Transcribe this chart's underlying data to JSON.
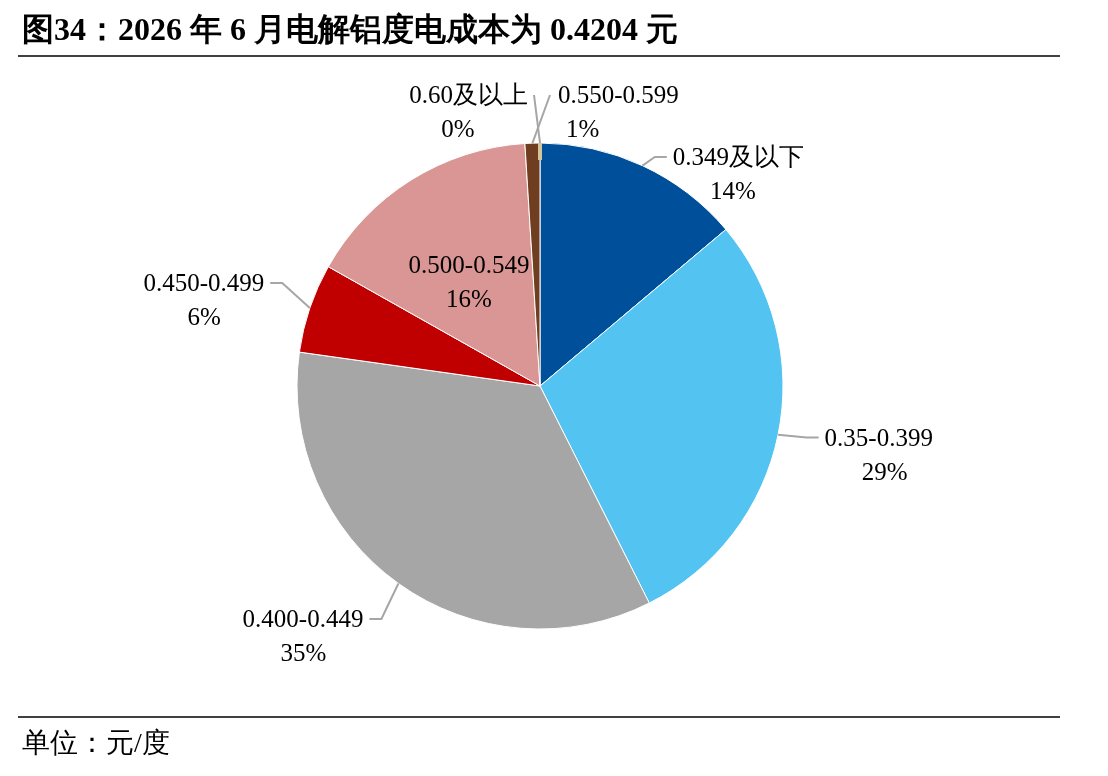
{
  "chart_data": {
    "type": "pie",
    "title": "图34：2026 年 6 月电解铝度电成本为 0.4204 元",
    "categories": [
      "0.349及以下",
      "0.35-0.399",
      "0.400-0.449",
      "0.450-0.499",
      "0.500-0.549",
      "0.550-0.599",
      "0.60及以上"
    ],
    "values": [
      14,
      29,
      35,
      6,
      16,
      1,
      0
    ],
    "value_labels": [
      "14%",
      "29%",
      "35%",
      "6%",
      "16%",
      "1%",
      "0%"
    ],
    "colors": [
      "#004f9a",
      "#53c3f1",
      "#a6a6a6",
      "#c00000",
      "#d99694",
      "#6f3d1f",
      "#d6c59b"
    ],
    "annotations": [
      "单位：元/度"
    ]
  }
}
